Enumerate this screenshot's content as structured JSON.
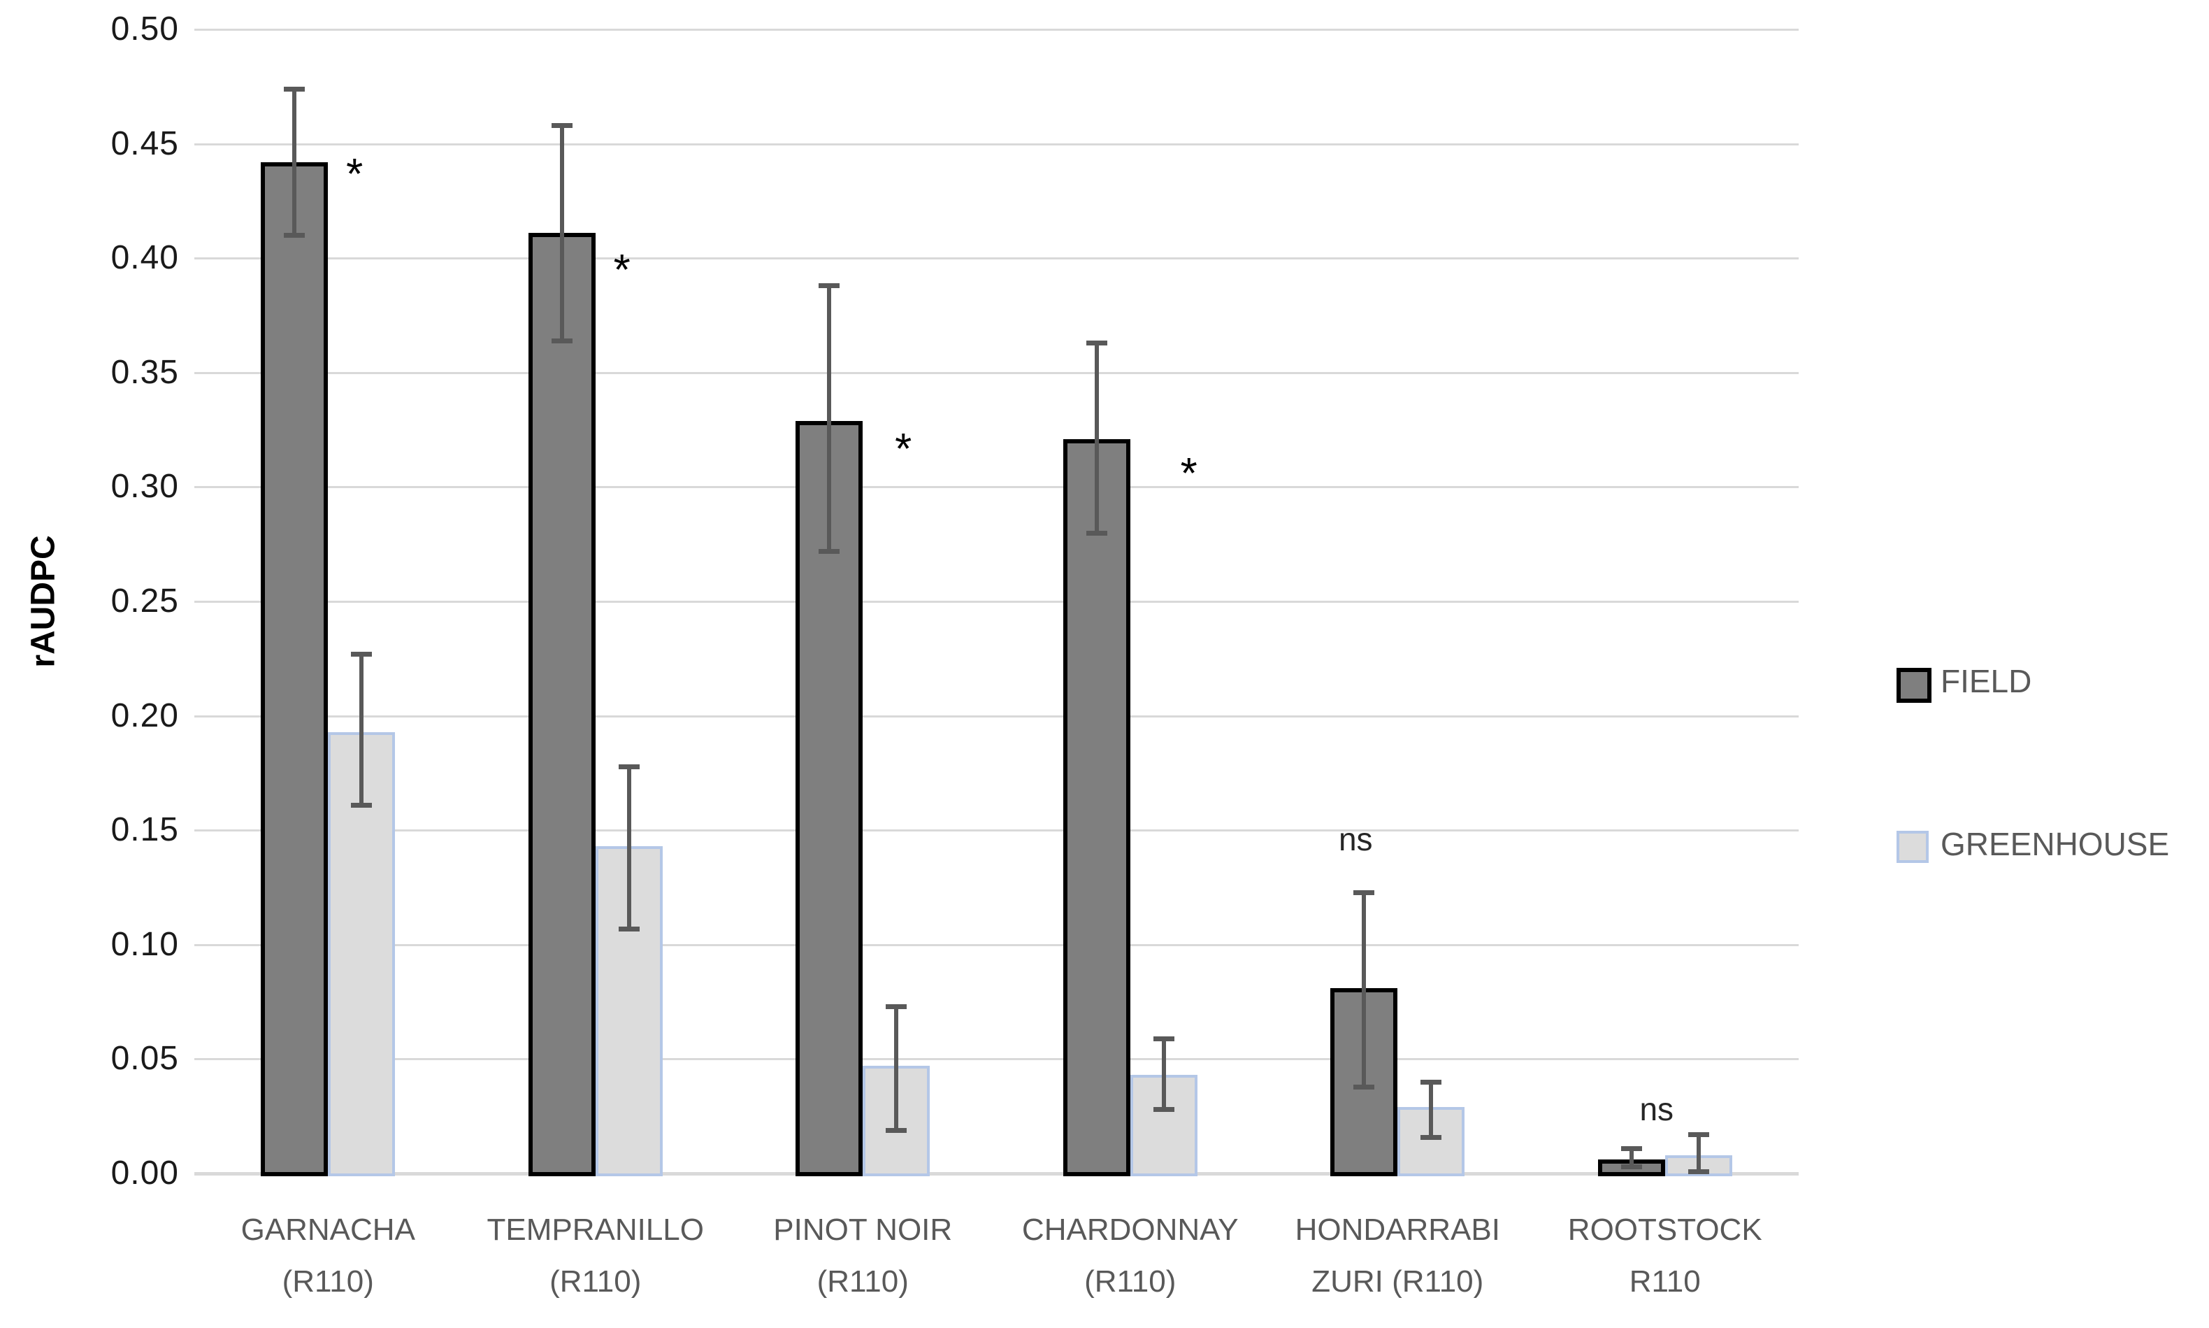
{
  "chart_data": {
    "type": "bar",
    "title": "",
    "xlabel": "",
    "ylabel": "rAUDPC",
    "grid": true,
    "categories": [
      {
        "line1": "GARNACHA",
        "line2": "(R110)"
      },
      {
        "line1": "TEMPRANILLO",
        "line2": "(R110)"
      },
      {
        "line1": "PINOT NOIR",
        "line2": "(R110)"
      },
      {
        "line1": "CHARDONNAY",
        "line2": "(R110)"
      },
      {
        "line1": "HONDARRABI",
        "line2": "ZURI (R110)"
      },
      {
        "line1": "ROOTSTOCK",
        "line2": "R110"
      }
    ],
    "series": [
      {
        "name": "FIELD",
        "fill": "#7f7f7f",
        "border_color": "#000000",
        "border_width": 6,
        "values": [
          0.442,
          0.411,
          0.329,
          0.321,
          0.081,
          0.006
        ],
        "err_low": [
          0.41,
          0.364,
          0.272,
          0.28,
          0.038,
          0.003
        ],
        "err_high": [
          0.474,
          0.458,
          0.388,
          0.363,
          0.123,
          0.011
        ]
      },
      {
        "name": "GREENHOUSE",
        "fill": "#dcdcdc",
        "border_color": "#b4c7e7",
        "border_width": 4,
        "values": [
          0.193,
          0.143,
          0.047,
          0.043,
          0.029,
          0.008
        ],
        "err_low": [
          0.161,
          0.107,
          0.019,
          0.028,
          0.016,
          0.001
        ],
        "err_high": [
          0.227,
          0.178,
          0.073,
          0.059,
          0.04,
          0.017
        ]
      }
    ],
    "y_axis": {
      "min": 0.0,
      "max": 0.5,
      "step": 0.05,
      "tick_labels": [
        "0.50",
        "0.45",
        "0.40",
        "0.35",
        "0.30",
        "0.25",
        "0.20",
        "0.15",
        "0.10",
        "0.05",
        "0.00"
      ]
    },
    "annotations": [
      {
        "text": "*",
        "category": 0,
        "y": 0.438,
        "dx": 38
      },
      {
        "text": "*",
        "category": 1,
        "y": 0.396,
        "dx": 38
      },
      {
        "text": "*",
        "category": 2,
        "y": 0.318,
        "dx": 58
      },
      {
        "text": "*",
        "category": 3,
        "y": 0.307,
        "dx": 84
      },
      {
        "text": "ns",
        "category": 4,
        "y": 0.146,
        "dx": -60
      },
      {
        "text": "ns",
        "category": 5,
        "y": 0.028,
        "dx": -12
      }
    ],
    "legend": {
      "position": "right",
      "items": [
        {
          "label": "FIELD"
        },
        {
          "label": "GREENHOUSE"
        }
      ]
    },
    "colors": {
      "gridline": "#d9d9d9",
      "error_bar": "#595959",
      "axis_tick_text": "#1a1a1a",
      "category_text": "#595959",
      "legend_text": "#595959"
    }
  }
}
